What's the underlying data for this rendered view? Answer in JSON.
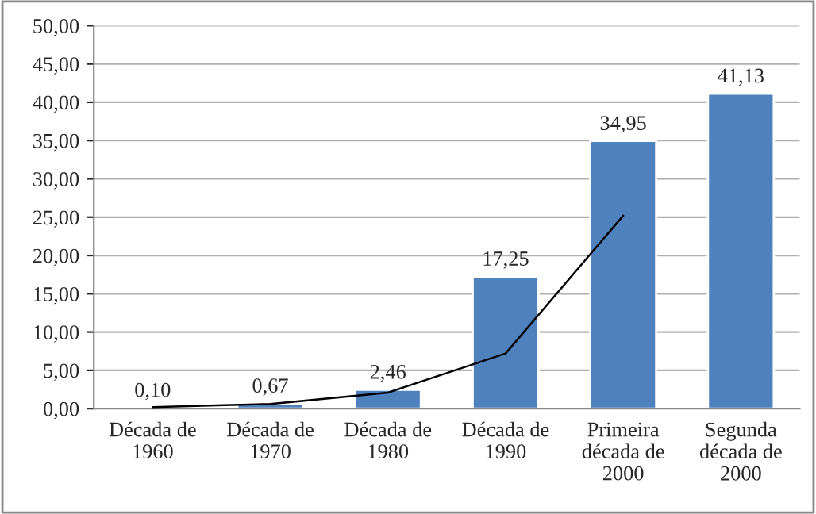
{
  "chart_data": {
    "type": "bar",
    "categories": [
      "Década de\n1960",
      "Década de\n1970",
      "Década de\n1980",
      "Década de\n1990",
      "Primeira\ndécada de\n2000",
      "Segunda\ndécada de\n2000"
    ],
    "series": [
      {
        "color": "#4f81bd",
        "values": [
          0.1,
          0.67,
          2.46,
          17.25,
          34.95,
          41.13
        ],
        "value_labels": [
          "0,10",
          "0,67",
          "2,46",
          "17,25",
          "34,95",
          "41,13"
        ]
      },
      {
        "type": "line",
        "color": "#000000",
        "values": [
          0.2,
          0.6,
          2.1,
          7.2,
          25.2,
          null
        ]
      }
    ],
    "ylim": [
      0,
      50
    ],
    "yticks": [
      {
        "value": 0,
        "label": "0,00"
      },
      {
        "value": 5,
        "label": "5,00"
      },
      {
        "value": 10,
        "label": "10,00"
      },
      {
        "value": 15,
        "label": "15,00"
      },
      {
        "value": 20,
        "label": "20,00"
      },
      {
        "value": 25,
        "label": "25,00"
      },
      {
        "value": 30,
        "label": "30,00"
      },
      {
        "value": 35,
        "label": "35,00"
      },
      {
        "value": 40,
        "label": "40,00"
      },
      {
        "value": 45,
        "label": "45,00"
      },
      {
        "value": 50,
        "label": "50,00"
      }
    ],
    "grid": "y",
    "legend": false
  }
}
